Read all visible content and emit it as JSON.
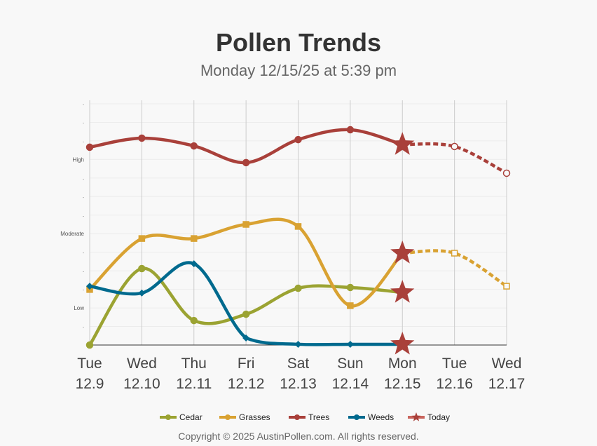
{
  "chart_data": {
    "type": "line",
    "title": "Pollen Trends",
    "subtitle": "Monday 12/15/25 at 5:39 pm",
    "categories": [
      [
        "Tue",
        "12.9"
      ],
      [
        "Wed",
        "12.10"
      ],
      [
        "Thu",
        "12.11"
      ],
      [
        "Fri",
        "12.12"
      ],
      [
        "Sat",
        "12.13"
      ],
      [
        "Sun",
        "12.14"
      ],
      [
        "Mon",
        "12.15"
      ],
      [
        "Tue",
        "12.16"
      ],
      [
        "Wed",
        "12.17"
      ]
    ],
    "today_index": 6,
    "ylim": [
      0,
      13
    ],
    "y_labels": [
      {
        "value": 2,
        "label": "Low"
      },
      {
        "value": 6,
        "label": "Moderate"
      },
      {
        "value": 10,
        "label": "High"
      }
    ],
    "series": [
      {
        "name": "Cedar",
        "color": "#9ba332",
        "values": [
          0,
          4.12,
          1.32,
          1.66,
          3.06,
          3.1,
          2.83,
          null,
          null
        ]
      },
      {
        "name": "Grasses",
        "color": "#d9a232",
        "values": [
          2.99,
          5.74,
          5.74,
          6.5,
          6.39,
          2.12,
          4.95,
          4.95,
          3.17
        ]
      },
      {
        "name": "Trees",
        "color": "#a9403a",
        "values": [
          10.66,
          11.15,
          10.73,
          9.83,
          11.07,
          11.6,
          10.8,
          10.7,
          9.26
        ]
      },
      {
        "name": "Weeds",
        "color": "#006a8e",
        "values": [
          3.17,
          2.8,
          4.38,
          0.38,
          0.04,
          0.04,
          0.04,
          null,
          null
        ]
      }
    ],
    "legend": [
      {
        "name": "Cedar",
        "color": "#9ba332"
      },
      {
        "name": "Grasses",
        "color": "#d9a232"
      },
      {
        "name": "Trees",
        "color": "#a9403a"
      },
      {
        "name": "Weeds",
        "color": "#006a8e"
      },
      {
        "name": "Today",
        "color": "#c9655e"
      }
    ],
    "legend_position": "bottom"
  },
  "footer": "Copyright © 2025 AustinPollen.com.  All rights reserved."
}
